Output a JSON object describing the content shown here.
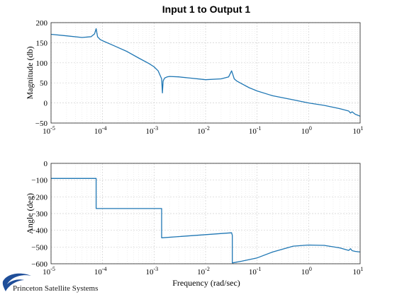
{
  "chart_data": {
    "title": "Input 1 to Output 1",
    "xlabel": "Frequency (rad/sec)",
    "x_scale": "log",
    "xlim": [
      1e-05,
      10
    ],
    "x_tick_labels": [
      {
        "base": "10",
        "exp": "-5"
      },
      {
        "base": "10",
        "exp": "-4"
      },
      {
        "base": "10",
        "exp": "-3"
      },
      {
        "base": "10",
        "exp": "-2"
      },
      {
        "base": "10",
        "exp": "-1"
      },
      {
        "base": "10",
        "exp": "0"
      },
      {
        "base": "10",
        "exp": "1"
      }
    ],
    "grid": true,
    "line_color": "#1f77b4",
    "plots": [
      {
        "type": "line",
        "ylabel": "Magnitude (db)",
        "ylim": [
          -50,
          200
        ],
        "yticks": [
          -50,
          0,
          50,
          100,
          150,
          200
        ],
        "series": [
          {
            "x": [
              1e-05,
              2e-05,
              4e-05,
              6e-05,
              7e-05,
              7.5e-05,
              8e-05,
              9e-05,
              0.0001,
              0.00015,
              0.0002,
              0.0003,
              0.0005,
              0.0008,
              0.001,
              0.0012,
              0.0014,
              0.00145,
              0.0015,
              0.0016,
              0.0018,
              0.002,
              0.003,
              0.005,
              0.01,
              0.02,
              0.028,
              0.032,
              0.034,
              0.036,
              0.04,
              0.05,
              0.07,
              0.1,
              0.2,
              0.5,
              1,
              2,
              4,
              6,
              6.5,
              7,
              8,
              10
            ],
            "y": [
              171,
              167,
              163,
              165,
              172,
              185,
              165,
              158,
              155,
              145,
              138,
              128,
              112,
              98,
              90,
              80,
              60,
              25,
              55,
              62,
              65,
              66,
              65,
              62,
              58,
              60,
              65,
              80,
              70,
              60,
              55,
              48,
              38,
              30,
              18,
              8,
              0,
              -6,
              -14,
              -20,
              -25,
              -22,
              -28,
              -33
            ]
          }
        ]
      },
      {
        "type": "line",
        "ylabel": "Angle (deg)",
        "ylim": [
          -600,
          0
        ],
        "yticks": [
          -600,
          -500,
          -400,
          -300,
          -200,
          -100,
          0
        ],
        "series": [
          {
            "x": [
              1e-05,
              7.5e-05,
              7.5e-05,
              0.0014,
              0.0014,
              0.032,
              0.033,
              0.033,
              0.05,
              0.1,
              0.2,
              0.5,
              1,
              2,
              4,
              6,
              6.5,
              7,
              8,
              10
            ],
            "y": [
              -90,
              -90,
              -270,
              -270,
              -445,
              -415,
              -430,
              -595,
              -585,
              -565,
              -530,
              -495,
              -488,
              -490,
              -505,
              -520,
              -510,
              -522,
              -526,
              -530
            ]
          }
        ]
      }
    ]
  },
  "logo": {
    "text": "Princeton Satellite Systems"
  }
}
